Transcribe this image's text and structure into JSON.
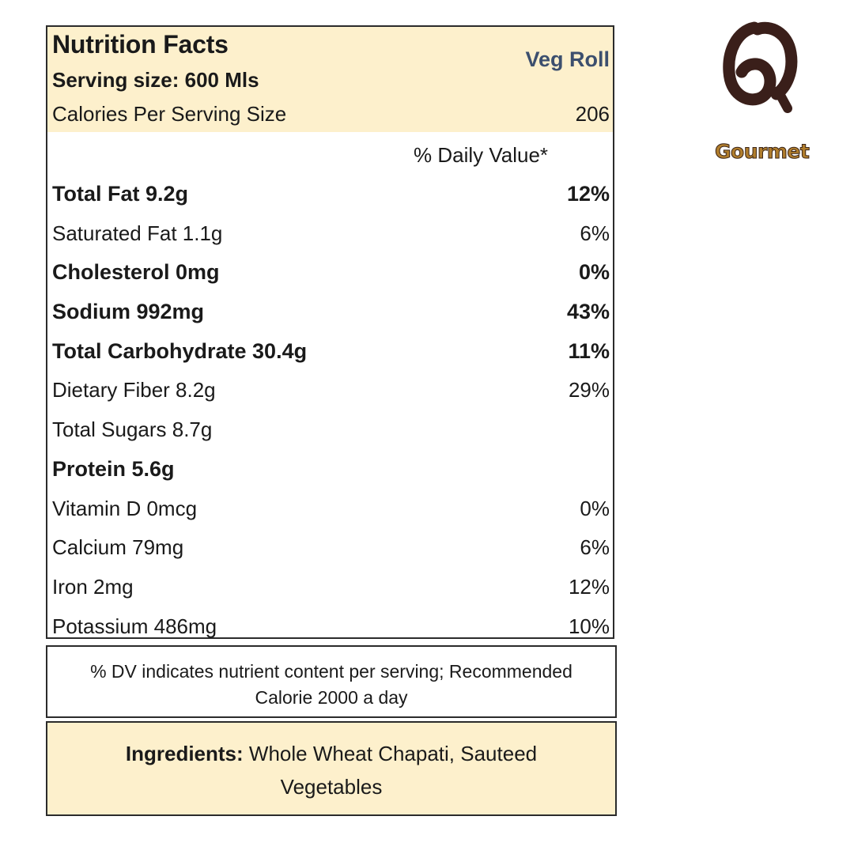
{
  "label": {
    "title": "Nutrition Facts",
    "product_name": "Veg Roll",
    "serving_size": "Serving size: 600 Mls",
    "calories_label": "Calories Per Serving Size",
    "calories_value": "206",
    "daily_value_header": "% Daily Value*",
    "nutrients": [
      {
        "name": "Total Fat 9.2g",
        "dv": "12%",
        "bold": true
      },
      {
        "name": "Saturated Fat 1.1g",
        "dv": "6%",
        "bold": false
      },
      {
        "name": "Cholesterol 0mg",
        "dv": "0%",
        "bold": true
      },
      {
        "name": "Sodium 992mg",
        "dv": "43%",
        "bold": true
      },
      {
        "name": "Total Carbohydrate 30.4g",
        "dv": "11%",
        "bold": true
      },
      {
        "name": "Dietary Fiber 8.2g",
        "dv": "29%",
        "bold": false
      },
      {
        "name": "Total Sugars 8.7g",
        "dv": "",
        "bold": false
      },
      {
        "name": "Protein 5.6g",
        "dv": "",
        "bold": true
      },
      {
        "name": "Vitamin D 0mcg",
        "dv": "0%",
        "bold": false
      },
      {
        "name": "Calcium 79mg",
        "dv": "6%",
        "bold": false
      },
      {
        "name": "Iron 2mg",
        "dv": "12%",
        "bold": false
      },
      {
        "name": "Potassium 486mg",
        "dv": "10%",
        "bold": false
      }
    ]
  },
  "footnote": {
    "text": "% DV indicates nutrient content per serving; Recommended Calorie 2000 a day"
  },
  "ingredients": {
    "label": "Ingredients:",
    "text": "Whole Wheat Chapati, Sauteed Vegetables"
  },
  "logo": {
    "icon": "gourmet-logo-icon",
    "text": "Gourmet",
    "mark_color": "#3a1f1a",
    "text_color": "#b07d2c"
  },
  "colors": {
    "header_background": "#fdf0cc",
    "product_name": "#3c4f6e",
    "border": "#2b2b2b"
  }
}
